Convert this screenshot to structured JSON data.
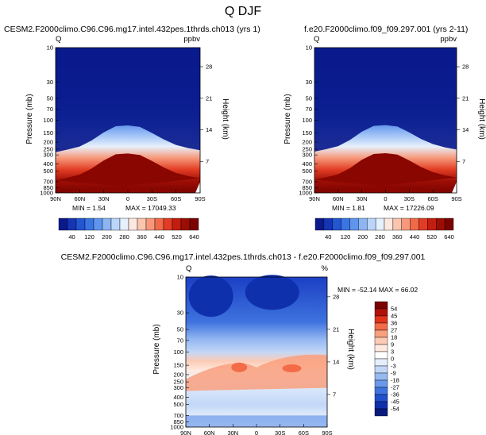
{
  "figure": {
    "title": "Q DJF"
  },
  "chart_data": [
    {
      "type": "heatmap",
      "title": "CESM2.F2000climo.C96.C96.mg17.intel.432pes.1thrds.ch013 (yrs 1)",
      "variable": "Q",
      "units": "ppbv",
      "xlabel": "",
      "ylabel": "Pressure (mb)",
      "ylabel_right": "Height (km)",
      "x_ticks": [
        "90N",
        "60N",
        "30N",
        "0",
        "30S",
        "60S",
        "90S"
      ],
      "y_ticks": [
        "10",
        "30",
        "50",
        "70",
        "100",
        "150",
        "200",
        "250",
        "300",
        "400",
        "500",
        "700",
        "850",
        "1000"
      ],
      "y_scale": "log",
      "ylim": [
        1000,
        10
      ],
      "height_ticks": [
        "28",
        "21",
        "14",
        "7"
      ],
      "min_label": "MIN =   1.54",
      "max_label": "MAX = 17049.33",
      "colorbar_labels": [
        "40",
        "120",
        "200",
        "280",
        "360",
        "440",
        "520",
        "640"
      ],
      "tropopause_profile": {
        "lat": [
          -90,
          -75,
          -60,
          -45,
          -30,
          -15,
          0,
          15,
          30,
          45,
          60,
          75,
          90
        ],
        "p_hPa": [
          450,
          420,
          380,
          320,
          260,
          215,
          205,
          210,
          255,
          330,
          400,
          440,
          480
        ]
      }
    },
    {
      "type": "heatmap",
      "title": "f.e20.F2000climo.f09_f09.297.001 (yrs 2-11)",
      "variable": "Q",
      "units": "ppbv",
      "xlabel": "",
      "ylabel": "Pressure (mb)",
      "ylabel_right": "Height (km)",
      "x_ticks": [
        "90N",
        "60N",
        "30N",
        "0",
        "30S",
        "60S",
        "90S"
      ],
      "y_ticks": [
        "10",
        "30",
        "50",
        "70",
        "100",
        "150",
        "200",
        "250",
        "300",
        "400",
        "500",
        "700",
        "850",
        "1000"
      ],
      "y_scale": "log",
      "ylim": [
        1000,
        10
      ],
      "height_ticks": [
        "28",
        "21",
        "14",
        "7"
      ],
      "min_label": "MIN =   1.81",
      "max_label": "MAX = 17226.09",
      "colorbar_labels": [
        "40",
        "120",
        "200",
        "280",
        "360",
        "440",
        "520",
        "640"
      ],
      "tropopause_profile": {
        "lat": [
          -90,
          -75,
          -60,
          -45,
          -30,
          -15,
          0,
          15,
          30,
          45,
          60,
          75,
          90
        ],
        "p_hPa": [
          440,
          410,
          370,
          315,
          255,
          212,
          203,
          208,
          250,
          325,
          395,
          435,
          470
        ]
      }
    },
    {
      "type": "heatmap",
      "title": "CESM2.F2000climo.C96.C96.mg17.intel.432pes.1thrds.ch013 - f.e20.F2000climo.f09_f09.297.001",
      "variable": "Q",
      "units": "%",
      "xlabel": "",
      "ylabel": "Pressure (mb)",
      "ylabel_right": "Height (km)",
      "x_ticks": [
        "90N",
        "60N",
        "30N",
        "0",
        "30S",
        "60S",
        "90S"
      ],
      "y_ticks": [
        "10",
        "30",
        "50",
        "70",
        "100",
        "150",
        "200",
        "250",
        "300",
        "400",
        "500",
        "700",
        "850",
        "1000"
      ],
      "y_scale": "log",
      "ylim": [
        1000,
        10
      ],
      "height_ticks": [
        "28",
        "21",
        "14",
        "7"
      ],
      "stats_label": "MIN = -52.14   MAX = 66.02",
      "colorbar_labels": [
        "54",
        "45",
        "36",
        "27",
        "18",
        "9",
        "3",
        "0",
        "-3",
        "-9",
        "-18",
        "-27",
        "-36",
        "-45",
        "-54"
      ]
    }
  ],
  "colors": {
    "ppbv_scale": [
      "#0a1a8c",
      "#1535b4",
      "#2455d2",
      "#3a75e4",
      "#5f95ee",
      "#8cb5f4",
      "#bad5f8",
      "#e6f0fc",
      "#fde8e0",
      "#fbc4ae",
      "#f7987a",
      "#f06a4a",
      "#e23c25",
      "#c31d10",
      "#9c0e05",
      "#7a0300"
    ],
    "diff_scale": [
      "#7a0300",
      "#b01208",
      "#e0351c",
      "#f36b47",
      "#f9a07f",
      "#fccbb5",
      "#fde9de",
      "#ffffff",
      "#e4eefc",
      "#c2d7f7",
      "#97b9f2",
      "#6a98ea",
      "#3f73df",
      "#2050cd",
      "#0f30ad",
      "#081a7d"
    ]
  }
}
